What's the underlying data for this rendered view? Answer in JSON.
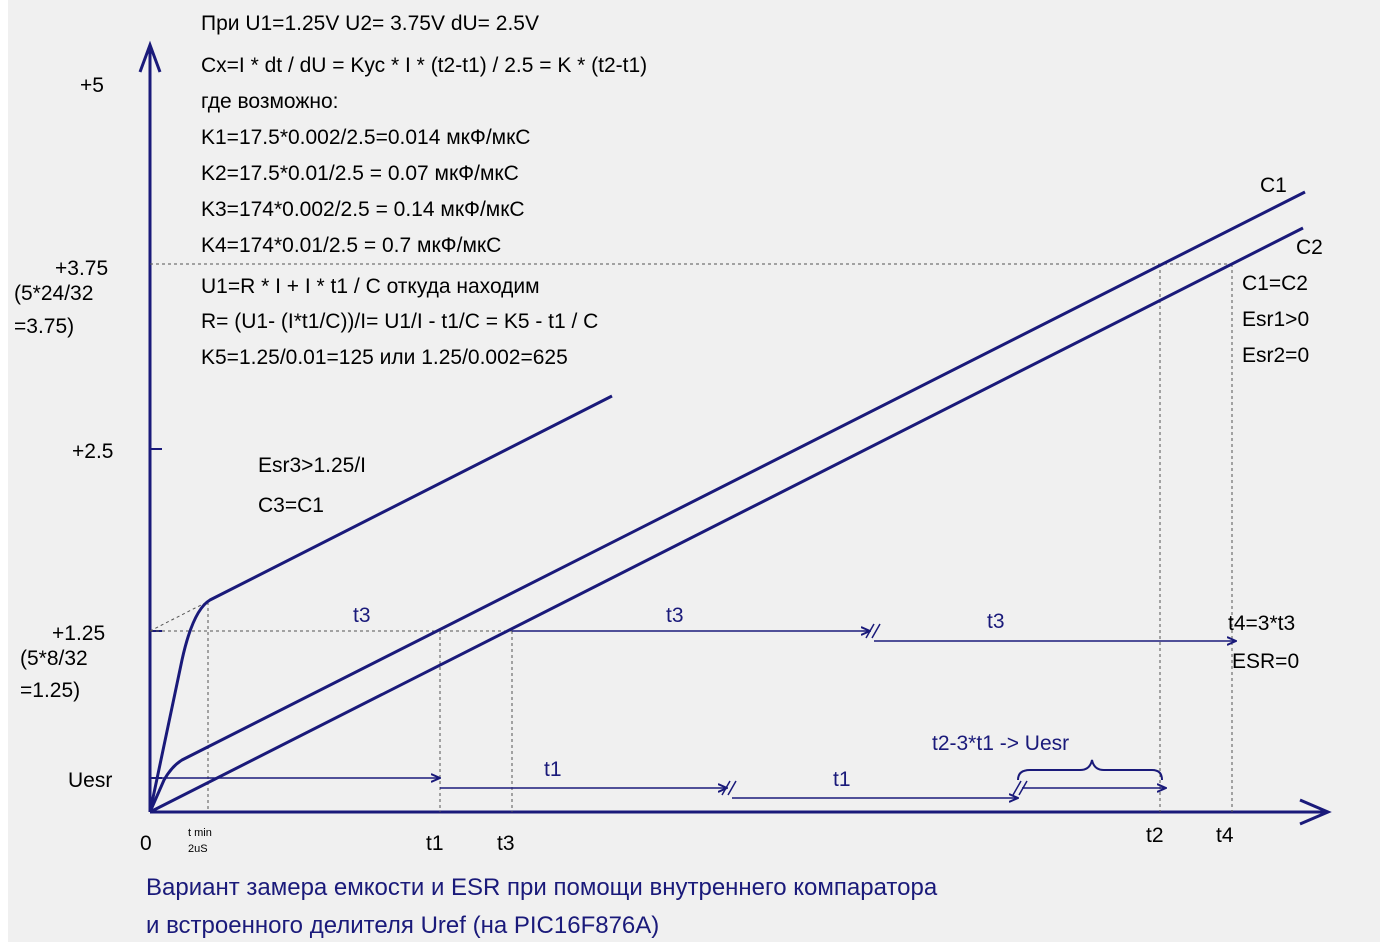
{
  "header_lines": [
    "При U1=1.25V  U2= 3.75V  dU= 2.5V",
    "Cx=I * dt / dU = Kус * I * (t2-t1) / 2.5 = K * (t2-t1)",
    "где возможно:",
    "K1=17.5*0.002/2.5=0.014 мкФ/мкС",
    "K2=17.5*0.01/2.5 = 0.07 мкФ/мкС",
    "K3=174*0.002/2.5 = 0.14 мкФ/мкС",
    "K4=174*0.01/2.5 =   0.7 мкФ/мкС",
    "U1=R * I + I * t1 / C    откуда находим",
    "R= (U1- (I*t1/C))/I= U1/I - t1/C = K5 - t1 / C",
    "K5=1.25/0.01=125 или 1.25/0.002=625"
  ],
  "y_axis": {
    "label_5": "+5",
    "label_375": "+3.75",
    "note_375_a": "(5*24/32",
    "note_375_b": "=3.75)",
    "label_25": "+2.5",
    "label_125": "+1.25",
    "note_125_a": "(5*8/32",
    "note_125_b": "=1.25)",
    "label_uesr": "Uesr",
    "label_0": "0"
  },
  "x_axis": {
    "tmin": "t min",
    "tmin_sub": "2uS",
    "t1": "t1",
    "t3": "t3",
    "t2": "t2",
    "t4": "t4"
  },
  "curves": {
    "c1": "C1",
    "c2": "C2",
    "c3_esr": "Esr3>1.25/I",
    "c3_eq": "C3=C1"
  },
  "right_notes": {
    "c1c2": "C1=C2",
    "esr1": "Esr1>0",
    "esr2": "Esr2=0",
    "t4eq": "t4=3*t3",
    "esr0": "ESR=0"
  },
  "intervals": {
    "t3_a": "t3",
    "t3_b": "t3",
    "t3_c": "t3",
    "t1_a": "t1",
    "t1_b": "t1",
    "brace": "t2-3*t1 -> Uesr"
  },
  "caption": [
    "Вариант замера емкости и ESR при помощи внутреннего компаратора",
    "и встроенного делителя  Uref    (на PIC16F876A)"
  ],
  "colors": {
    "line": "#1a1a7a",
    "text": "#000000",
    "background": "#f0f0f0"
  }
}
